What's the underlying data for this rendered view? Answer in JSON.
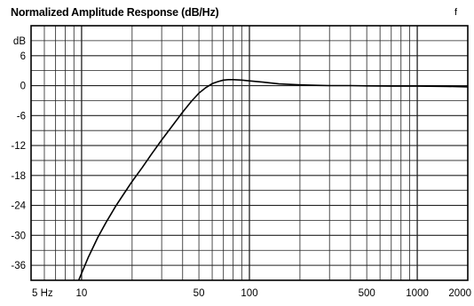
{
  "chart_data": {
    "type": "line",
    "title": "Normalized Amplitude Response (dB/Hz)",
    "top_right_mark": "f",
    "y_unit_label": "dB",
    "x_scale": "log",
    "xlim": [
      5,
      2000
    ],
    "ylim": [
      -39,
      12
    ],
    "grid": true,
    "y_ticks": [
      {
        "value": 6,
        "label": "6"
      },
      {
        "value": 0,
        "label": "0"
      },
      {
        "value": -6,
        "label": "-6"
      },
      {
        "value": -12,
        "label": "-12"
      },
      {
        "value": -18,
        "label": "-18"
      },
      {
        "value": -24,
        "label": "-24"
      },
      {
        "value": -30,
        "label": "-30"
      },
      {
        "value": -36,
        "label": "-36"
      }
    ],
    "x_ticks": [
      {
        "value": 5,
        "label": "5 Hz"
      },
      {
        "value": 10,
        "label": "10"
      },
      {
        "value": 50,
        "label": "50"
      },
      {
        "value": 100,
        "label": "100"
      },
      {
        "value": 500,
        "label": "500"
      },
      {
        "value": 1000,
        "label": "1000"
      },
      {
        "value": 2000,
        "label": "2000"
      }
    ],
    "series": [
      {
        "x": [
          9.6,
          11,
          12.5,
          14,
          16,
          18,
          20,
          23,
          26,
          30,
          35,
          40,
          45,
          50,
          55,
          60,
          65,
          70,
          75,
          80,
          90,
          100,
          120,
          150,
          200,
          250,
          300,
          400,
          500,
          700,
          1000,
          1500,
          2000
        ],
        "y": [
          -39,
          -34.3,
          -30.4,
          -27.4,
          -24.1,
          -21.5,
          -19.2,
          -16.4,
          -13.8,
          -10.9,
          -7.9,
          -5.3,
          -3.2,
          -1.5,
          -0.4,
          0.4,
          0.8,
          1.1,
          1.2,
          1.2,
          1.1,
          0.95,
          0.7,
          0.35,
          0.15,
          0.05,
          0,
          0,
          -0.05,
          -0.1,
          -0.1,
          -0.15,
          -0.25
        ]
      }
    ]
  }
}
